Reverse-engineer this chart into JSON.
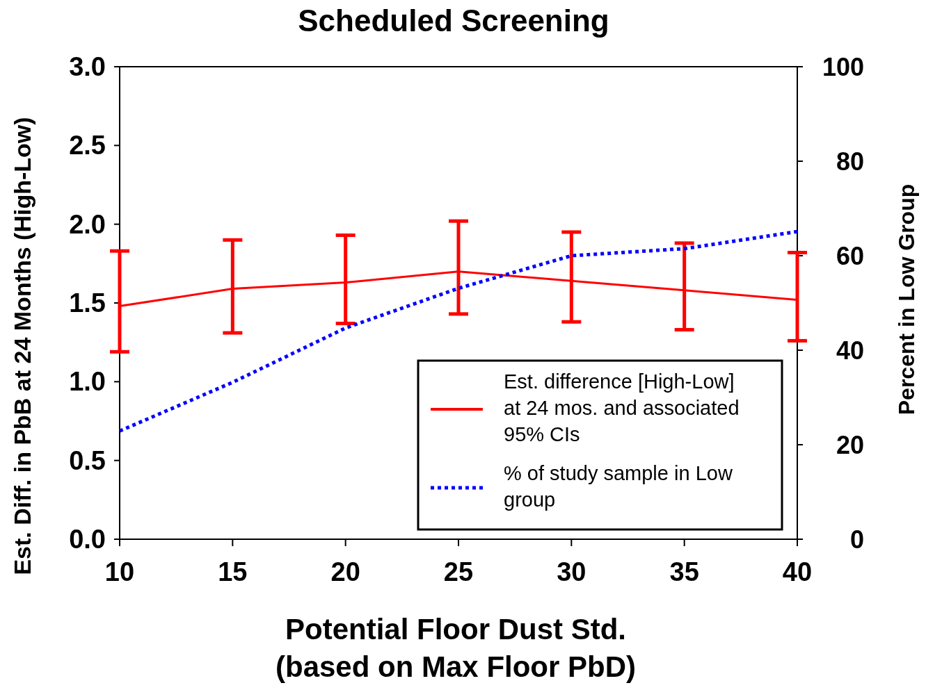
{
  "chart_data": {
    "type": "line",
    "title": "Scheduled Screening",
    "xlabel": "Potential Floor Dust Std.\n(based on Max Floor PbD)",
    "ylabel": "Est. Diff. in PbB at 24 Months (High-Low)",
    "y2label": "Percent in Low Group",
    "x": [
      10,
      15,
      20,
      25,
      30,
      35,
      40
    ],
    "xlim": [
      10,
      40
    ],
    "xticks": [
      10,
      15,
      20,
      25,
      30,
      35,
      40
    ],
    "ylim": [
      0,
      3
    ],
    "yticks": [
      {
        "value": 0,
        "label": "0.0"
      },
      {
        "value": 0.5,
        "label": "0.5"
      },
      {
        "value": 1,
        "label": "1.0"
      },
      {
        "value": 1.5,
        "label": "1.5"
      },
      {
        "value": 2,
        "label": "2.0"
      },
      {
        "value": 2.5,
        "label": "2.5"
      },
      {
        "value": 3,
        "label": "3.0"
      }
    ],
    "y2lim": [
      0,
      100
    ],
    "y2ticks": [
      0,
      20,
      40,
      60,
      80,
      100
    ],
    "series": [
      {
        "name": "Est. difference [High-Low] at 24 mos. and associated 95% CIs",
        "color": "#ff0000",
        "line_style": "solid",
        "values": [
          1.48,
          1.59,
          1.63,
          1.7,
          1.64,
          1.58,
          1.52
        ],
        "errors": [
          [
            1.19,
            1.83
          ],
          [
            1.31,
            1.9
          ],
          [
            1.37,
            1.93
          ],
          [
            1.43,
            2.02
          ],
          [
            1.38,
            1.95
          ],
          [
            1.33,
            1.88
          ],
          [
            1.26,
            1.82
          ]
        ]
      },
      {
        "name": "% of study sample in Low group",
        "color": "#0000ff",
        "line_style": "dotted",
        "axis": "y2",
        "values": [
          22.9,
          33.2,
          44.7,
          53.1,
          60,
          61.5,
          65.1
        ]
      }
    ],
    "legend": "bottom right",
    "grid": false,
    "marker": "none"
  }
}
